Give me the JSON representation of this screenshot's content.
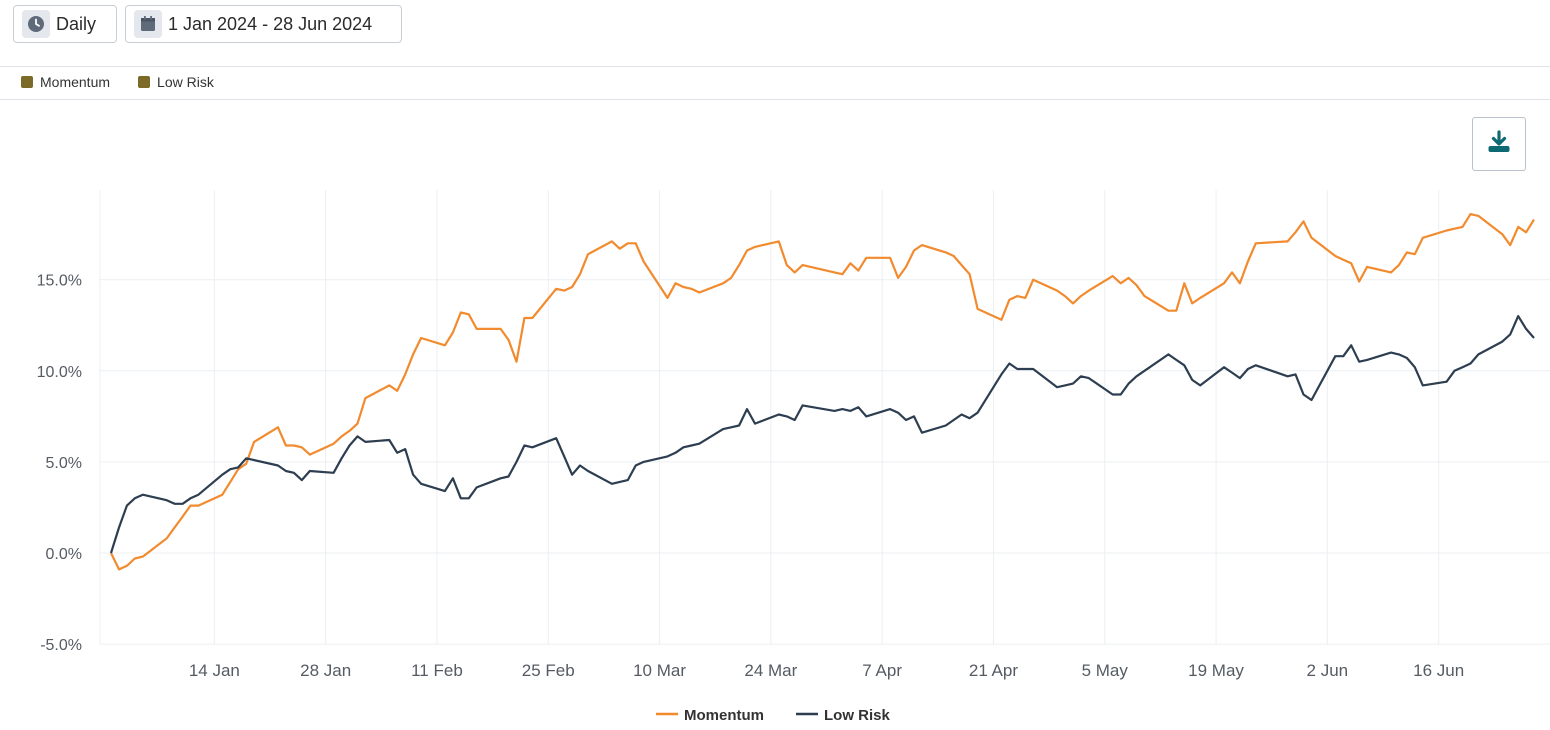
{
  "toolbar": {
    "period": {
      "label": "Daily",
      "icon": "clock-icon"
    },
    "date_range": {
      "label": "1 Jan 2024 - 28 Jun 2024",
      "icon": "calendar-icon"
    }
  },
  "top_legend": [
    {
      "label": "Momentum",
      "swatch_color": "#7b6a28"
    },
    {
      "label": "Low Risk",
      "swatch_color": "#7b6a28"
    }
  ],
  "download": {
    "icon": "download-icon",
    "color": "#0e6a72"
  },
  "chart_data": {
    "type": "line",
    "title": "",
    "xlabel": "",
    "ylabel": "",
    "x_range": [
      "2024-01-01",
      "2024-06-28"
    ],
    "ylim": [
      -5,
      20
    ],
    "y_ticks": [
      -5,
      0,
      5,
      10,
      15
    ],
    "y_tick_labels": [
      "-5.0%",
      "0.0%",
      "5.0%",
      "10.0%",
      "15.0%"
    ],
    "x_ticks": [
      "2024-01-14",
      "2024-01-28",
      "2024-02-11",
      "2024-02-25",
      "2024-03-10",
      "2024-03-24",
      "2024-04-07",
      "2024-04-21",
      "2024-05-05",
      "2024-05-19",
      "2024-06-02",
      "2024-06-16"
    ],
    "x_tick_labels": [
      "14 Jan",
      "28 Jan",
      "11 Feb",
      "25 Feb",
      "10 Mar",
      "24 Mar",
      "7 Apr",
      "21 Apr",
      "5 May",
      "19 May",
      "2 Jun",
      "16 Jun"
    ],
    "grid": true,
    "legend_position": "bottom-center",
    "series": [
      {
        "name": "Momentum",
        "color": "#f28a2e",
        "points": [
          [
            "2024-01-01",
            0.0
          ],
          [
            "2024-01-02",
            -0.9
          ],
          [
            "2024-01-03",
            -0.7
          ],
          [
            "2024-01-04",
            -0.3
          ],
          [
            "2024-01-05",
            -0.2
          ],
          [
            "2024-01-08",
            0.8
          ],
          [
            "2024-01-09",
            1.4
          ],
          [
            "2024-01-10",
            2.0
          ],
          [
            "2024-01-11",
            2.6
          ],
          [
            "2024-01-12",
            2.6
          ],
          [
            "2024-01-15",
            3.2
          ],
          [
            "2024-01-16",
            3.9
          ],
          [
            "2024-01-17",
            4.6
          ],
          [
            "2024-01-18",
            4.9
          ],
          [
            "2024-01-19",
            6.1
          ],
          [
            "2024-01-22",
            6.9
          ],
          [
            "2024-01-23",
            5.9
          ],
          [
            "2024-01-24",
            5.9
          ],
          [
            "2024-01-25",
            5.8
          ],
          [
            "2024-01-26",
            5.4
          ],
          [
            "2024-01-29",
            6.0
          ],
          [
            "2024-01-30",
            6.4
          ],
          [
            "2024-01-31",
            6.7
          ],
          [
            "2024-02-01",
            7.1
          ],
          [
            "2024-02-02",
            8.5
          ],
          [
            "2024-02-05",
            9.2
          ],
          [
            "2024-02-06",
            8.9
          ],
          [
            "2024-02-07",
            9.8
          ],
          [
            "2024-02-08",
            10.9
          ],
          [
            "2024-02-09",
            11.8
          ],
          [
            "2024-02-12",
            11.4
          ],
          [
            "2024-02-13",
            12.1
          ],
          [
            "2024-02-14",
            13.2
          ],
          [
            "2024-02-15",
            13.1
          ],
          [
            "2024-02-16",
            12.3
          ],
          [
            "2024-02-19",
            12.3
          ],
          [
            "2024-02-20",
            11.7
          ],
          [
            "2024-02-21",
            10.5
          ],
          [
            "2024-02-22",
            12.9
          ],
          [
            "2024-02-23",
            12.9
          ],
          [
            "2024-02-26",
            14.5
          ],
          [
            "2024-02-27",
            14.4
          ],
          [
            "2024-02-28",
            14.6
          ],
          [
            "2024-02-29",
            15.3
          ],
          [
            "2024-03-01",
            16.4
          ],
          [
            "2024-03-04",
            17.1
          ],
          [
            "2024-03-05",
            16.7
          ],
          [
            "2024-03-06",
            17.0
          ],
          [
            "2024-03-07",
            17.0
          ],
          [
            "2024-03-08",
            16.0
          ],
          [
            "2024-03-11",
            14.0
          ],
          [
            "2024-03-12",
            14.8
          ],
          [
            "2024-03-13",
            14.6
          ],
          [
            "2024-03-14",
            14.5
          ],
          [
            "2024-03-15",
            14.3
          ],
          [
            "2024-03-18",
            14.8
          ],
          [
            "2024-03-19",
            15.1
          ],
          [
            "2024-03-20",
            15.8
          ],
          [
            "2024-03-21",
            16.6
          ],
          [
            "2024-03-22",
            16.8
          ],
          [
            "2024-03-25",
            17.1
          ],
          [
            "2024-03-26",
            15.8
          ],
          [
            "2024-03-27",
            15.4
          ],
          [
            "2024-03-28",
            15.8
          ],
          [
            "2024-04-01",
            15.4
          ],
          [
            "2024-04-02",
            15.3
          ],
          [
            "2024-04-03",
            15.9
          ],
          [
            "2024-04-04",
            15.5
          ],
          [
            "2024-04-05",
            16.2
          ],
          [
            "2024-04-08",
            16.2
          ],
          [
            "2024-04-09",
            15.1
          ],
          [
            "2024-04-10",
            15.7
          ],
          [
            "2024-04-11",
            16.6
          ],
          [
            "2024-04-12",
            16.9
          ],
          [
            "2024-04-15",
            16.5
          ],
          [
            "2024-04-16",
            16.3
          ],
          [
            "2024-04-17",
            15.8
          ],
          [
            "2024-04-18",
            15.3
          ],
          [
            "2024-04-19",
            13.4
          ],
          [
            "2024-04-22",
            12.8
          ],
          [
            "2024-04-23",
            13.9
          ],
          [
            "2024-04-24",
            14.1
          ],
          [
            "2024-04-25",
            14.0
          ],
          [
            "2024-04-26",
            15.0
          ],
          [
            "2024-04-29",
            14.4
          ],
          [
            "2024-04-30",
            14.1
          ],
          [
            "2024-05-01",
            13.7
          ],
          [
            "2024-05-02",
            14.1
          ],
          [
            "2024-05-03",
            14.4
          ],
          [
            "2024-05-06",
            15.2
          ],
          [
            "2024-05-07",
            14.8
          ],
          [
            "2024-05-08",
            15.1
          ],
          [
            "2024-05-09",
            14.7
          ],
          [
            "2024-05-10",
            14.1
          ],
          [
            "2024-05-13",
            13.3
          ],
          [
            "2024-05-14",
            13.3
          ],
          [
            "2024-05-15",
            14.8
          ],
          [
            "2024-05-16",
            13.7
          ],
          [
            "2024-05-17",
            14.0
          ],
          [
            "2024-05-20",
            14.8
          ],
          [
            "2024-05-21",
            15.4
          ],
          [
            "2024-05-22",
            14.8
          ],
          [
            "2024-05-23",
            16.0
          ],
          [
            "2024-05-24",
            17.0
          ],
          [
            "2024-05-28",
            17.1
          ],
          [
            "2024-05-29",
            17.6
          ],
          [
            "2024-05-30",
            18.2
          ],
          [
            "2024-05-31",
            17.3
          ],
          [
            "2024-06-03",
            16.3
          ],
          [
            "2024-06-04",
            16.1
          ],
          [
            "2024-06-05",
            15.9
          ],
          [
            "2024-06-06",
            14.9
          ],
          [
            "2024-06-07",
            15.7
          ],
          [
            "2024-06-10",
            15.4
          ],
          [
            "2024-06-11",
            15.8
          ],
          [
            "2024-06-12",
            16.5
          ],
          [
            "2024-06-13",
            16.4
          ],
          [
            "2024-06-14",
            17.3
          ],
          [
            "2024-06-17",
            17.7
          ],
          [
            "2024-06-18",
            17.8
          ],
          [
            "2024-06-19",
            17.9
          ],
          [
            "2024-06-20",
            18.6
          ],
          [
            "2024-06-21",
            18.5
          ],
          [
            "2024-06-24",
            17.5
          ],
          [
            "2024-06-25",
            16.9
          ],
          [
            "2024-06-26",
            17.9
          ],
          [
            "2024-06-27",
            17.6
          ],
          [
            "2024-06-28",
            18.3
          ]
        ]
      },
      {
        "name": "Low Risk",
        "color": "#2d3e50",
        "points": [
          [
            "2024-01-01",
            0.0
          ],
          [
            "2024-01-02",
            1.4
          ],
          [
            "2024-01-03",
            2.6
          ],
          [
            "2024-01-04",
            3.0
          ],
          [
            "2024-01-05",
            3.2
          ],
          [
            "2024-01-08",
            2.9
          ],
          [
            "2024-01-09",
            2.7
          ],
          [
            "2024-01-10",
            2.7
          ],
          [
            "2024-01-11",
            3.0
          ],
          [
            "2024-01-12",
            3.2
          ],
          [
            "2024-01-15",
            4.3
          ],
          [
            "2024-01-16",
            4.6
          ],
          [
            "2024-01-17",
            4.7
          ],
          [
            "2024-01-18",
            5.2
          ],
          [
            "2024-01-19",
            5.1
          ],
          [
            "2024-01-22",
            4.8
          ],
          [
            "2024-01-23",
            4.5
          ],
          [
            "2024-01-24",
            4.4
          ],
          [
            "2024-01-25",
            4.0
          ],
          [
            "2024-01-26",
            4.5
          ],
          [
            "2024-01-29",
            4.4
          ],
          [
            "2024-01-30",
            5.2
          ],
          [
            "2024-01-31",
            5.9
          ],
          [
            "2024-02-01",
            6.4
          ],
          [
            "2024-02-02",
            6.1
          ],
          [
            "2024-02-05",
            6.2
          ],
          [
            "2024-02-06",
            5.5
          ],
          [
            "2024-02-07",
            5.7
          ],
          [
            "2024-02-08",
            4.3
          ],
          [
            "2024-02-09",
            3.8
          ],
          [
            "2024-02-12",
            3.4
          ],
          [
            "2024-02-13",
            4.1
          ],
          [
            "2024-02-14",
            3.0
          ],
          [
            "2024-02-15",
            3.0
          ],
          [
            "2024-02-16",
            3.6
          ],
          [
            "2024-02-19",
            4.1
          ],
          [
            "2024-02-20",
            4.2
          ],
          [
            "2024-02-21",
            5.0
          ],
          [
            "2024-02-22",
            5.9
          ],
          [
            "2024-02-23",
            5.8
          ],
          [
            "2024-02-26",
            6.3
          ],
          [
            "2024-02-27",
            5.3
          ],
          [
            "2024-02-28",
            4.3
          ],
          [
            "2024-02-29",
            4.8
          ],
          [
            "2024-03-01",
            4.5
          ],
          [
            "2024-03-04",
            3.8
          ],
          [
            "2024-03-05",
            3.9
          ],
          [
            "2024-03-06",
            4.0
          ],
          [
            "2024-03-07",
            4.8
          ],
          [
            "2024-03-08",
            5.0
          ],
          [
            "2024-03-11",
            5.3
          ],
          [
            "2024-03-12",
            5.5
          ],
          [
            "2024-03-13",
            5.8
          ],
          [
            "2024-03-14",
            5.9
          ],
          [
            "2024-03-15",
            6.0
          ],
          [
            "2024-03-18",
            6.8
          ],
          [
            "2024-03-19",
            6.9
          ],
          [
            "2024-03-20",
            7.0
          ],
          [
            "2024-03-21",
            7.9
          ],
          [
            "2024-03-22",
            7.1
          ],
          [
            "2024-03-25",
            7.6
          ],
          [
            "2024-03-26",
            7.5
          ],
          [
            "2024-03-27",
            7.3
          ],
          [
            "2024-03-28",
            8.1
          ],
          [
            "2024-04-01",
            7.8
          ],
          [
            "2024-04-02",
            7.9
          ],
          [
            "2024-04-03",
            7.8
          ],
          [
            "2024-04-04",
            8.0
          ],
          [
            "2024-04-05",
            7.5
          ],
          [
            "2024-04-08",
            7.9
          ],
          [
            "2024-04-09",
            7.7
          ],
          [
            "2024-04-10",
            7.3
          ],
          [
            "2024-04-11",
            7.5
          ],
          [
            "2024-04-12",
            6.6
          ],
          [
            "2024-04-15",
            7.0
          ],
          [
            "2024-04-16",
            7.3
          ],
          [
            "2024-04-17",
            7.6
          ],
          [
            "2024-04-18",
            7.4
          ],
          [
            "2024-04-19",
            7.7
          ],
          [
            "2024-04-22",
            9.8
          ],
          [
            "2024-04-23",
            10.4
          ],
          [
            "2024-04-24",
            10.1
          ],
          [
            "2024-04-25",
            10.1
          ],
          [
            "2024-04-26",
            10.1
          ],
          [
            "2024-04-29",
            9.1
          ],
          [
            "2024-04-30",
            9.2
          ],
          [
            "2024-05-01",
            9.3
          ],
          [
            "2024-05-02",
            9.7
          ],
          [
            "2024-05-03",
            9.6
          ],
          [
            "2024-05-06",
            8.7
          ],
          [
            "2024-05-07",
            8.7
          ],
          [
            "2024-05-08",
            9.3
          ],
          [
            "2024-05-09",
            9.7
          ],
          [
            "2024-05-10",
            10.0
          ],
          [
            "2024-05-13",
            10.9
          ],
          [
            "2024-05-14",
            10.6
          ],
          [
            "2024-05-15",
            10.3
          ],
          [
            "2024-05-16",
            9.5
          ],
          [
            "2024-05-17",
            9.2
          ],
          [
            "2024-05-20",
            10.2
          ],
          [
            "2024-05-21",
            9.9
          ],
          [
            "2024-05-22",
            9.6
          ],
          [
            "2024-05-23",
            10.1
          ],
          [
            "2024-05-24",
            10.3
          ],
          [
            "2024-05-28",
            9.7
          ],
          [
            "2024-05-29",
            9.8
          ],
          [
            "2024-05-30",
            8.7
          ],
          [
            "2024-05-31",
            8.4
          ],
          [
            "2024-06-03",
            10.8
          ],
          [
            "2024-06-04",
            10.8
          ],
          [
            "2024-06-05",
            11.4
          ],
          [
            "2024-06-06",
            10.5
          ],
          [
            "2024-06-07",
            10.6
          ],
          [
            "2024-06-10",
            11.0
          ],
          [
            "2024-06-11",
            10.9
          ],
          [
            "2024-06-12",
            10.7
          ],
          [
            "2024-06-13",
            10.2
          ],
          [
            "2024-06-14",
            9.2
          ],
          [
            "2024-06-17",
            9.4
          ],
          [
            "2024-06-18",
            10.0
          ],
          [
            "2024-06-19",
            10.2
          ],
          [
            "2024-06-20",
            10.4
          ],
          [
            "2024-06-21",
            10.9
          ],
          [
            "2024-06-24",
            11.6
          ],
          [
            "2024-06-25",
            12.0
          ],
          [
            "2024-06-26",
            13.0
          ],
          [
            "2024-06-27",
            12.3
          ],
          [
            "2024-06-28",
            11.8
          ]
        ]
      }
    ]
  }
}
